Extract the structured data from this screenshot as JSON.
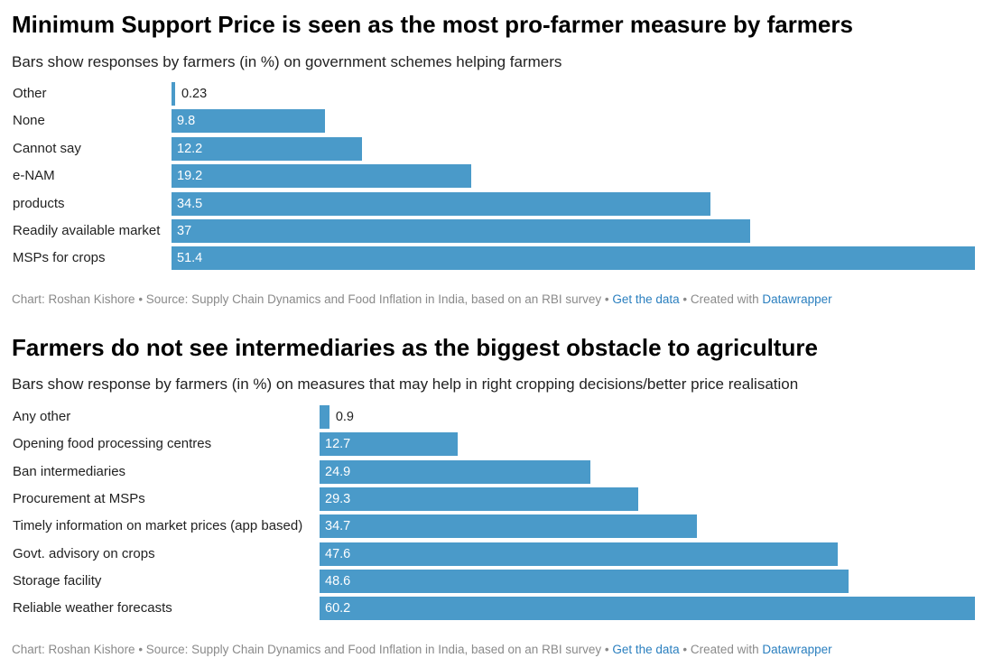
{
  "charts": [
    {
      "title": "Minimum Support Price is seen as the most pro-farmer measure by farmers",
      "subtitle": "Bars show responses by farmers (in %) on government schemes helping farmers",
      "footer": {
        "source_text": "Chart: Roshan Kishore • Source: Supply Chain Dynamics and Food Inflation in India, based on an RBI survey • ",
        "get_data_label": "Get the data",
        "created_text": " • Created with ",
        "tool_label": "Datawrapper"
      }
    },
    {
      "title": "Farmers do not see intermediaries as the biggest obstacle to agriculture",
      "subtitle": "Bars show response by farmers (in %) on measures that may help in right cropping decisions/better price realisation",
      "footer": {
        "source_text": "Chart: Roshan Kishore • Source: Supply Chain Dynamics and Food Inflation in India, based on an RBI survey • ",
        "get_data_label": "Get the data",
        "created_text": " • Created with ",
        "tool_label": "Datawrapper"
      }
    }
  ],
  "chart_data": [
    {
      "type": "bar",
      "orientation": "horizontal",
      "title": "Minimum Support Price is seen as the most pro-farmer measure by farmers",
      "subtitle": "Bars show responses by farmers (in %) on government schemes helping farmers",
      "categories": [
        "Other",
        "None",
        "Cannot say",
        "e-NAM",
        "products",
        "Readily available market",
        "MSPs for crops"
      ],
      "values": [
        0.23,
        9.8,
        12.2,
        19.2,
        34.5,
        37,
        51.4
      ],
      "value_labels": [
        "0.23",
        "9.8",
        "12.2",
        "19.2",
        "34.5",
        "37",
        "51.4"
      ],
      "xlim": [
        0,
        51.4
      ],
      "bar_color": "#4a9ac9",
      "grid": false
    },
    {
      "type": "bar",
      "orientation": "horizontal",
      "title": "Farmers do not see intermediaries as the biggest obstacle to agriculture",
      "subtitle": "Bars show response by farmers (in %) on measures that may help in right cropping decisions/better price realisation",
      "categories": [
        "Any other",
        "Opening food processing centres",
        "Ban intermediaries",
        "Procurement at MSPs",
        "Timely information on market prices (app based)",
        "Govt. advisory on crops",
        "Storage facility",
        "Reliable weather forecasts"
      ],
      "values": [
        0.9,
        12.7,
        24.9,
        29.3,
        34.7,
        47.6,
        48.6,
        60.2
      ],
      "value_labels": [
        "0.9",
        "12.7",
        "24.9",
        "29.3",
        "34.7",
        "47.6",
        "48.6",
        "60.2"
      ],
      "xlim": [
        0,
        60.2
      ],
      "bar_color": "#4a9ac9",
      "grid": false
    }
  ]
}
